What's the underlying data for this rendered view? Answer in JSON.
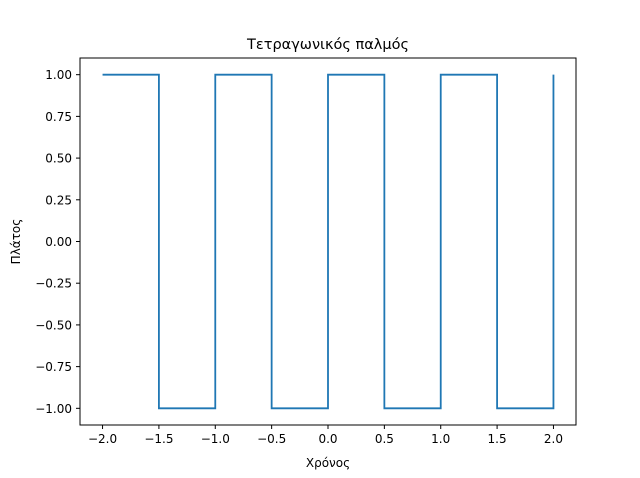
{
  "chart_data": {
    "type": "line",
    "title": "Τετραγωνικός παλμός",
    "xlabel": "Χρόνος",
    "ylabel": "Πλάτος",
    "xlim": [
      -2.2,
      2.2
    ],
    "ylim": [
      -1.1,
      1.1
    ],
    "xticks": [
      -2.0,
      -1.5,
      -1.0,
      -0.5,
      0.0,
      0.5,
      1.0,
      1.5,
      2.0
    ],
    "xtick_labels": [
      "−2.0",
      "−1.5",
      "−1.0",
      "−0.5",
      "0.0",
      "0.5",
      "1.0",
      "1.5",
      "2.0"
    ],
    "yticks": [
      1.0,
      0.75,
      0.5,
      0.25,
      0.0,
      -0.25,
      -0.5,
      -0.75,
      -1.0
    ],
    "ytick_labels": [
      "1.00",
      "0.75",
      "0.50",
      "0.25",
      "0.00",
      "−0.25",
      "−0.50",
      "−0.75",
      "−1.00"
    ],
    "grid": false,
    "series": [
      {
        "color": "#1f77b4",
        "x": [
          -2.0,
          -1.5,
          -1.5,
          -1.0,
          -1.0,
          -0.5,
          -0.5,
          0.0,
          0.0,
          0.5,
          0.5,
          1.0,
          1.0,
          1.5,
          1.5,
          2.0,
          2.0
        ],
        "y": [
          1.0,
          1.0,
          -1.0,
          -1.0,
          1.0,
          1.0,
          -1.0,
          -1.0,
          1.0,
          1.0,
          -1.0,
          -1.0,
          1.0,
          1.0,
          -1.0,
          -1.0,
          1.0
        ]
      }
    ]
  }
}
